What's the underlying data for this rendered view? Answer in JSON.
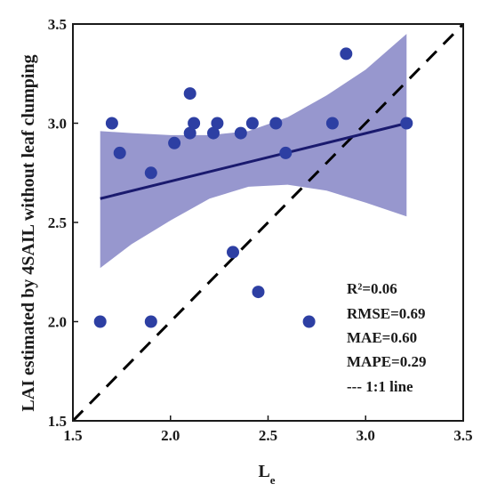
{
  "chart_data": {
    "type": "scatter",
    "xlabel": "L",
    "xlabel_subscript": "e",
    "ylabel": "LAI estimated by 4SAIL without leaf clumping",
    "xlim": [
      1.5,
      3.5
    ],
    "ylim": [
      1.5,
      3.5
    ],
    "x_ticks": [
      "1.5",
      "2.0",
      "2.5",
      "3.0",
      "3.5"
    ],
    "y_ticks": [
      "1.5",
      "2.0",
      "2.5",
      "3.0",
      "3.5"
    ],
    "grid": false,
    "points": [
      {
        "x": 1.64,
        "y": 2.0
      },
      {
        "x": 1.7,
        "y": 3.0
      },
      {
        "x": 1.74,
        "y": 2.85
      },
      {
        "x": 1.9,
        "y": 2.75
      },
      {
        "x": 1.9,
        "y": 2.0
      },
      {
        "x": 2.02,
        "y": 2.9
      },
      {
        "x": 2.1,
        "y": 3.15
      },
      {
        "x": 2.1,
        "y": 2.95
      },
      {
        "x": 2.12,
        "y": 3.0
      },
      {
        "x": 2.22,
        "y": 2.95
      },
      {
        "x": 2.24,
        "y": 3.0
      },
      {
        "x": 2.32,
        "y": 2.35
      },
      {
        "x": 2.36,
        "y": 2.95
      },
      {
        "x": 2.42,
        "y": 3.0
      },
      {
        "x": 2.45,
        "y": 2.15
      },
      {
        "x": 2.54,
        "y": 3.0
      },
      {
        "x": 2.59,
        "y": 2.85
      },
      {
        "x": 2.71,
        "y": 2.0
      },
      {
        "x": 2.83,
        "y": 3.0
      },
      {
        "x": 2.9,
        "y": 3.35
      },
      {
        "x": 3.21,
        "y": 3.0
      }
    ],
    "regression_line": {
      "x": [
        1.64,
        3.21
      ],
      "y": [
        2.62,
        3.0
      ],
      "color": "#1a1a6e"
    },
    "confidence_band": {
      "x": [
        1.64,
        1.8,
        2.0,
        2.2,
        2.4,
        2.6,
        2.8,
        3.0,
        3.21
      ],
      "upper": [
        2.96,
        2.95,
        2.94,
        2.94,
        2.96,
        3.03,
        3.14,
        3.27,
        3.45
      ],
      "lower": [
        2.27,
        2.39,
        2.51,
        2.62,
        2.68,
        2.69,
        2.66,
        2.6,
        2.53
      ],
      "color": "#8c8cc9"
    },
    "identity_line": {
      "label": "--- 1:1 line",
      "style": "dashed",
      "color": "#000000"
    },
    "point_color": "#2d3fa3",
    "stats": [
      "R²=0.06",
      "RMSE=0.69",
      "MAE=0.60",
      "MAPE=0.29",
      "--- 1:1 line"
    ],
    "stats_placement": "bottom-right"
  }
}
